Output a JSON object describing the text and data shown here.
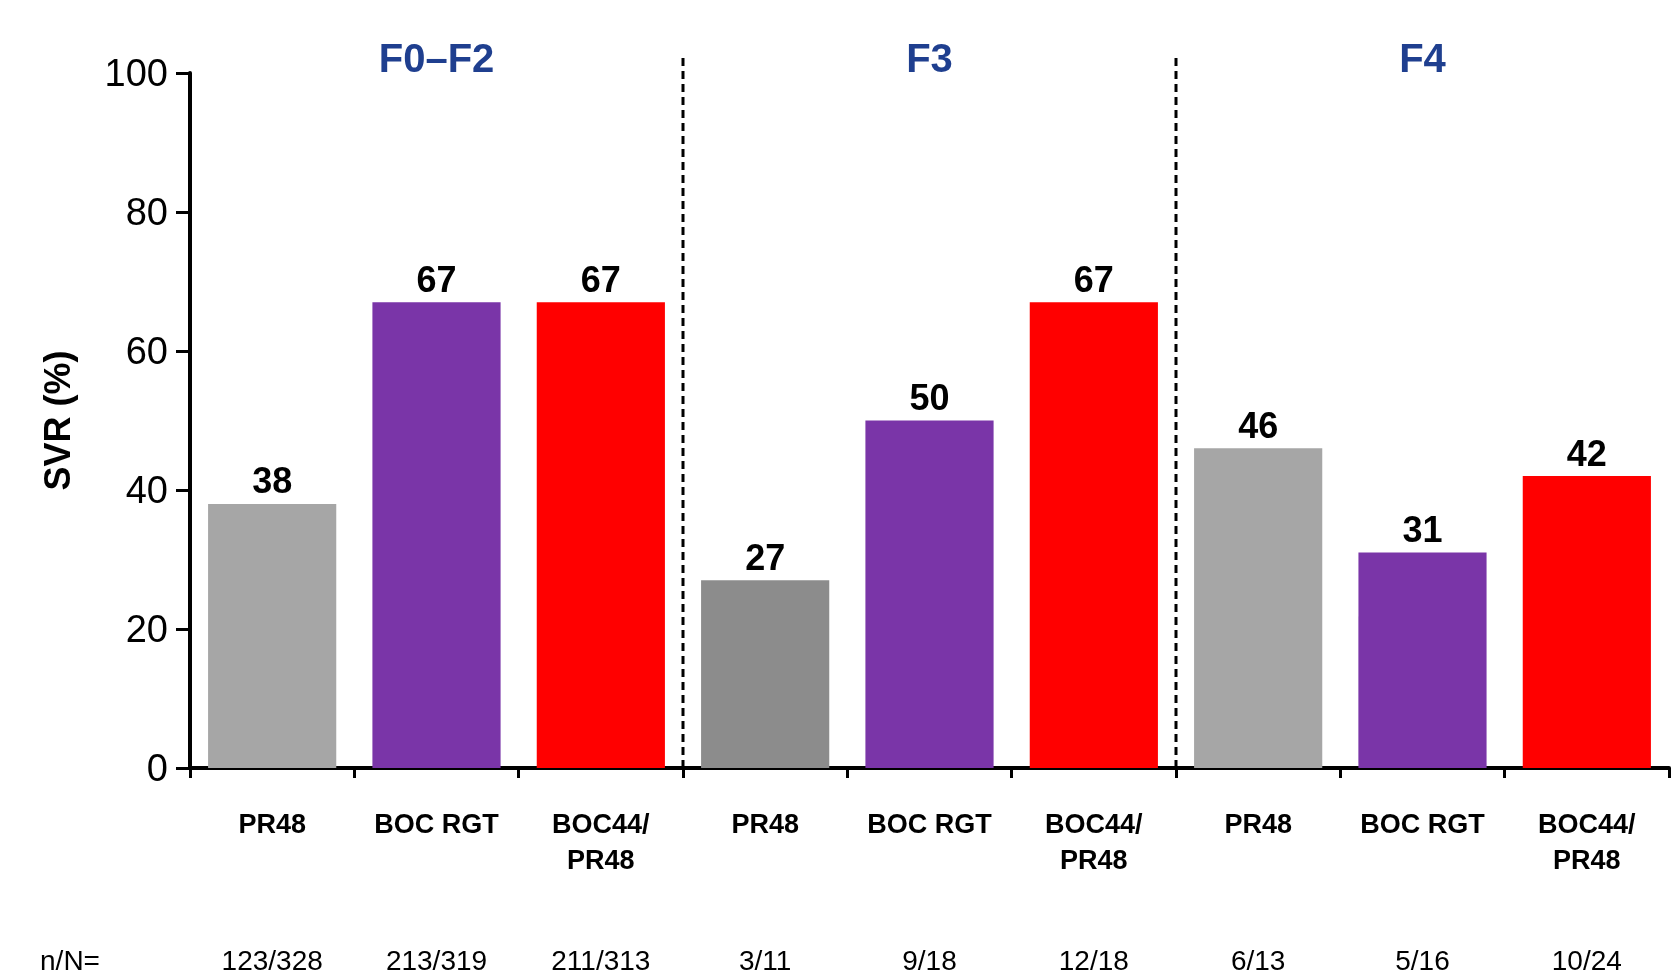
{
  "chart_data": {
    "type": "bar",
    "ylabel": "SVR (%)",
    "categories": [
      "PR48",
      "BOC RGT",
      "BOC44/\nPR48",
      "PR48",
      "BOC RGT",
      "BOC44/\nPR48",
      "PR48",
      "BOC RGT",
      "BOC44/\nPR48"
    ],
    "values": [
      38,
      67,
      67,
      27,
      50,
      67,
      46,
      31,
      42
    ],
    "colors": [
      "#a6a6a6",
      "#7a35a8",
      "#ff0000",
      "#8c8c8c",
      "#7a35a8",
      "#ff0000",
      "#a6a6a6",
      "#7a35a8",
      "#ff0000"
    ],
    "ylim": [
      0,
      100
    ],
    "yticks": [
      0,
      20,
      40,
      60,
      80,
      100
    ],
    "grid": false,
    "data_labels": true,
    "annotations": [
      "F0–F2",
      "F3",
      "F4",
      "n/N=",
      "123/328",
      "213/319",
      "211/313",
      "3/11",
      "9/18",
      "12/18",
      "6/13",
      "5/16",
      "10/24"
    ]
  }
}
